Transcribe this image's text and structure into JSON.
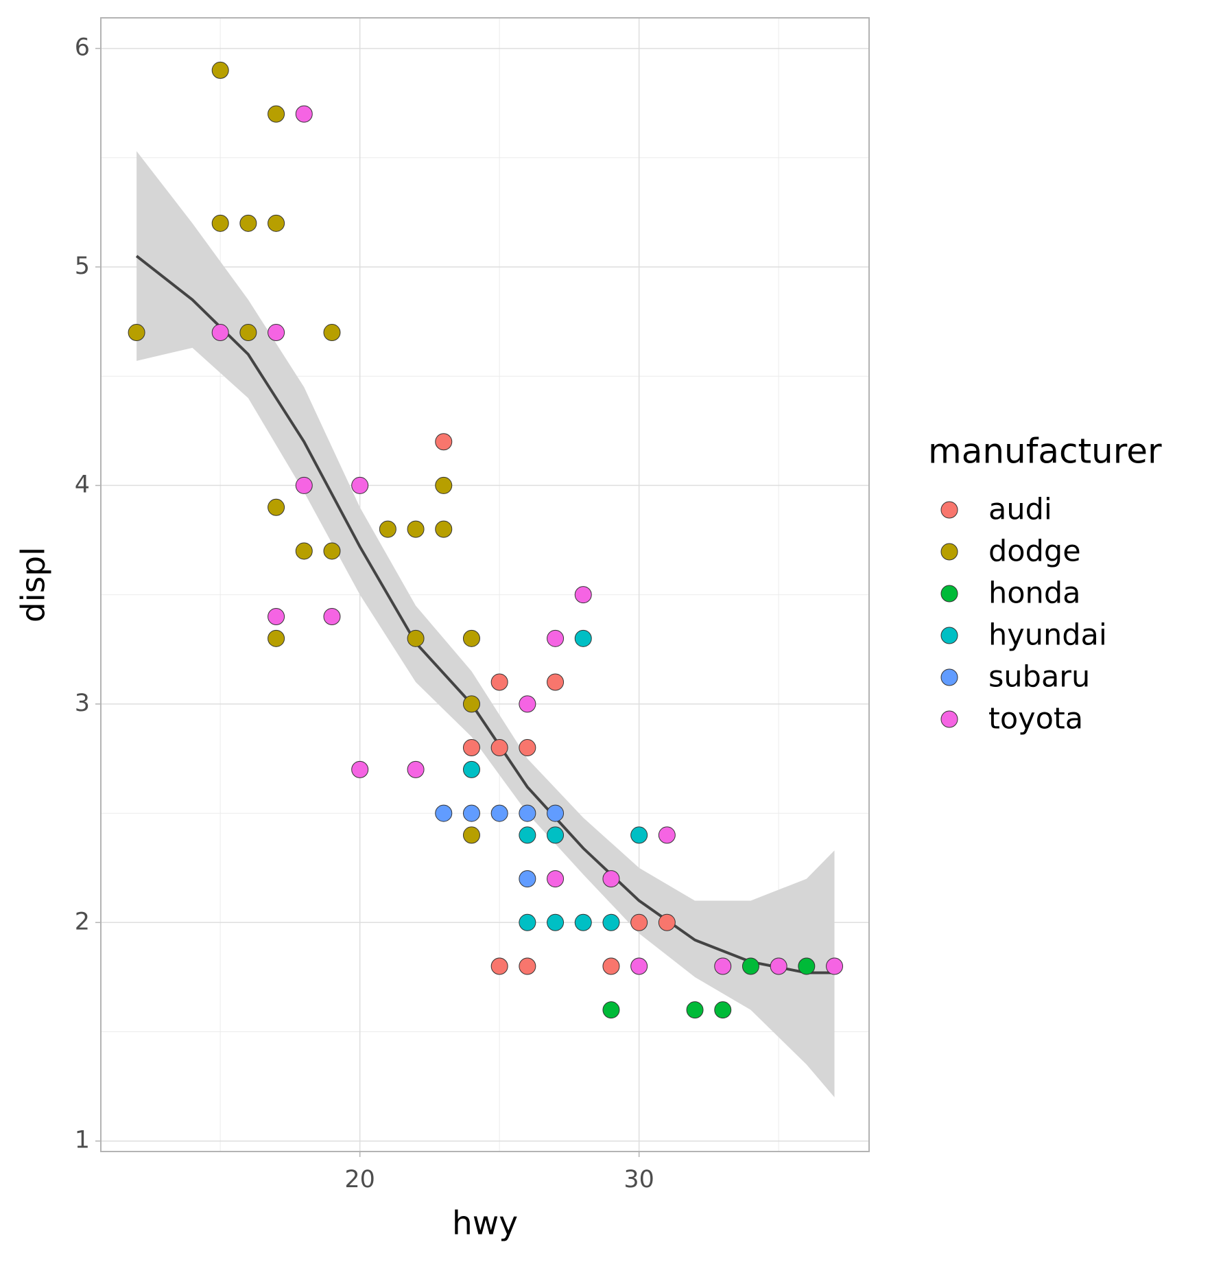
{
  "chart_data": {
    "type": "scatter",
    "x_label": "hwy",
    "y_label": "displ",
    "legend_title": "manufacturer",
    "xlim": [
      10.72,
      38.24
    ],
    "ylim": [
      0.952,
      6.14
    ],
    "xticks": [
      20,
      30
    ],
    "yticks": [
      1,
      2,
      3,
      4,
      5,
      6
    ],
    "xminorticks": [
      15,
      25,
      35
    ],
    "yminorticks": [
      1.5,
      2.5,
      3.5,
      4.5,
      5.5
    ],
    "grid": true,
    "legend": "right",
    "series": [
      {
        "name": "audi",
        "color": "#F8766D",
        "x": [
          23,
          25,
          27,
          24,
          25,
          26,
          25,
          26,
          29,
          30,
          31
        ],
        "values": [
          4.2,
          3.1,
          3.1,
          2.8,
          2.8,
          2.8,
          1.8,
          1.8,
          1.8,
          2.0,
          2.0
        ]
      },
      {
        "name": "dodge",
        "color": "#B79F00",
        "x": [
          12,
          15,
          15,
          16,
          17,
          17,
          16,
          17,
          17,
          18,
          19,
          19,
          21,
          22,
          23,
          23,
          22,
          24,
          24,
          24
        ],
        "values": [
          4.7,
          5.9,
          5.2,
          5.2,
          5.7,
          5.2,
          4.7,
          3.9,
          3.3,
          3.7,
          3.7,
          4.7,
          3.8,
          3.8,
          3.8,
          4.0,
          3.3,
          3.3,
          3.0,
          2.4
        ]
      },
      {
        "name": "honda",
        "color": "#00BA38",
        "x": [
          29,
          32,
          33,
          34,
          36
        ],
        "values": [
          1.6,
          1.6,
          1.6,
          1.8,
          1.8
        ]
      },
      {
        "name": "hyundai",
        "color": "#00BFC4",
        "x": [
          24,
          26,
          27,
          28,
          26,
          27,
          28,
          29,
          30
        ],
        "values": [
          2.7,
          2.4,
          2.4,
          3.3,
          2.0,
          2.0,
          2.0,
          2.0,
          2.4
        ]
      },
      {
        "name": "subaru",
        "color": "#619CFF",
        "x": [
          23,
          24,
          25,
          26,
          27,
          26
        ],
        "values": [
          2.5,
          2.5,
          2.5,
          2.5,
          2.5,
          2.2
        ]
      },
      {
        "name": "toyota",
        "color": "#F564E3",
        "x": [
          18,
          15,
          17,
          18,
          20,
          17,
          19,
          20,
          22,
          26,
          27,
          28,
          27,
          29,
          31,
          30,
          33,
          35,
          37
        ],
        "values": [
          5.7,
          4.7,
          4.7,
          4.0,
          4.0,
          3.4,
          3.4,
          2.7,
          2.7,
          3.0,
          3.3,
          3.5,
          2.2,
          2.2,
          2.4,
          1.8,
          1.8,
          1.8,
          1.8
        ]
      }
    ],
    "smooth": {
      "color": "#444444",
      "band_color": "#d6d6d6",
      "x": [
        12,
        14,
        16,
        18,
        20,
        22,
        24,
        26,
        28,
        30,
        32,
        34,
        36,
        37
      ],
      "values": [
        5.05,
        4.85,
        4.6,
        4.2,
        3.72,
        3.28,
        3.0,
        2.62,
        2.34,
        2.1,
        1.92,
        1.82,
        1.77,
        1.77
      ],
      "upper": [
        5.53,
        5.2,
        4.85,
        4.45,
        3.9,
        3.45,
        3.15,
        2.75,
        2.48,
        2.25,
        2.1,
        2.1,
        2.2,
        2.33
      ],
      "lower": [
        4.57,
        4.63,
        4.4,
        3.97,
        3.5,
        3.1,
        2.85,
        2.5,
        2.22,
        1.95,
        1.75,
        1.6,
        1.35,
        1.2
      ]
    }
  }
}
